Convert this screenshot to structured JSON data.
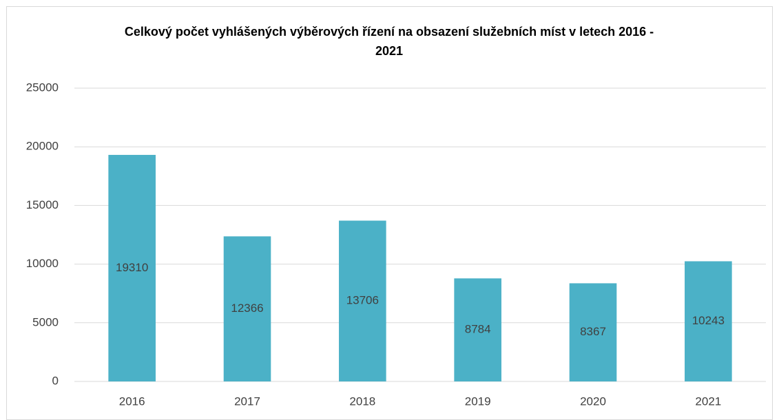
{
  "chart_data": {
    "type": "bar",
    "title": "Celkový počet vyhlášených výběrových řízení na obsazení služebních míst v letech 2016 - 2021",
    "categories": [
      "2016",
      "2017",
      "2018",
      "2019",
      "2020",
      "2021"
    ],
    "values": [
      19310,
      12366,
      13706,
      8784,
      8367,
      10243
    ],
    "color": "#4bb1c7",
    "ylim": [
      0,
      25000
    ],
    "yticks": [
      0,
      5000,
      10000,
      15000,
      20000,
      25000
    ],
    "grid": true
  }
}
